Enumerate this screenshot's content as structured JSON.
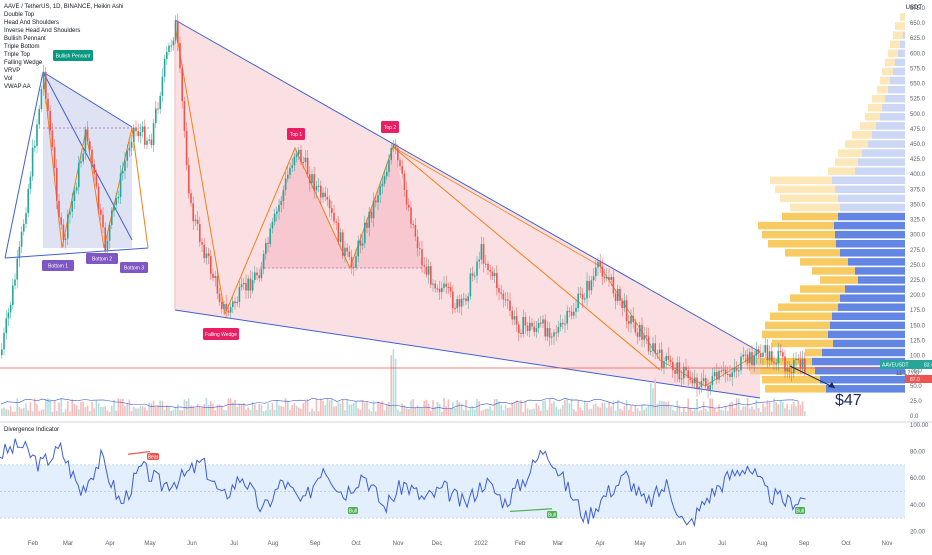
{
  "header": {
    "title": "AAVE / TetherUS, 1D, BINANCE, Heikin Ashi",
    "indicators": [
      "Double Top",
      "Head And Shoulders",
      "Inverse Head And Shoulders",
      "Bullish Pennant",
      "Triple Bottom",
      "Triple Top",
      "Falling Wedge",
      "VRVP",
      "Vol",
      "VWAP AA"
    ],
    "unit": "USDT"
  },
  "lower_pane": {
    "title": "Divergence Indicator"
  },
  "colors": {
    "up": "#26a69a",
    "down": "#ef5350",
    "wedge": "#3e5fd1",
    "pattern": "#f57f17",
    "pink_fill": "#f8c6cc",
    "profile_blue": "#5b7fe0",
    "profile_blue_light": "#c9d5f5",
    "profile_yellow": "#f7c85a",
    "profile_yellow_light": "#fde6b5",
    "rsi": "#3e5fd1",
    "bull_label": "#4caf50",
    "bear_label": "#ef5350",
    "bottom_label": "#7e57c2",
    "top_label": "#e91e63",
    "price_tag": "#26a69a",
    "price_tag2": "#ef5350"
  },
  "annotations": {
    "bullish_pennant": "Bullish Pennant",
    "bottom1": "Bottom 1",
    "bottom2": "Bottom 2",
    "bottom3": "Bottom 3",
    "top1": "Top 1",
    "top2": "Top 2",
    "falling_wedge": "Falling Wedge",
    "target": "$47",
    "price_tag": "AAVEUSDT",
    "price_value": "83.4",
    "countdown": "11:17:00",
    "price_tag2": "87.0",
    "bear": "Bear",
    "bull": "Bull"
  },
  "chart_data": [
    {
      "type": "line",
      "name": "AAVE / TetherUS price (Heikin Ashi, approximated close path)",
      "x": [
        "Feb",
        "Mar",
        "Apr",
        "May",
        "Jun",
        "Jul",
        "Aug",
        "Sep",
        "Oct",
        "Nov",
        "Dec",
        "2022",
        "Feb",
        "Mar",
        "Apr",
        "May",
        "Jun",
        "Jul",
        "Aug",
        "Sep"
      ],
      "series": [
        {
          "values": [
            430,
            560,
            380,
            650,
            250,
            200,
            420,
            380,
            310,
            330,
            200,
            220,
            160,
            150,
            240,
            120,
            60,
            85,
            95,
            80
          ]
        }
      ],
      "yticks": [
        0.0,
        25.0,
        50.0,
        75.0,
        100.0,
        125.0,
        150.0,
        175.0,
        200.0,
        225.0,
        250.0,
        275.0,
        300.0,
        325.0,
        350.0,
        375.0,
        400.0,
        425.0,
        450.0,
        475.0,
        500.0,
        525.0,
        550.0,
        575.0,
        600.0,
        625.0,
        650.0,
        675.0
      ],
      "xticks": [
        "Feb",
        "Mar",
        "Apr",
        "May",
        "Jun",
        "Jul",
        "Aug",
        "Sep",
        "Oct",
        "Nov",
        "Dec",
        "2022",
        "Feb",
        "Mar",
        "Apr",
        "May",
        "Jun",
        "Jul",
        "Aug",
        "Sep",
        "Oct",
        "Nov"
      ],
      "ylim": [
        0,
        675
      ],
      "last_price": 83.4
    },
    {
      "type": "line",
      "name": "Divergence Indicator",
      "yticks": [
        20.0,
        40.0,
        60.0,
        80.0,
        100.0
      ],
      "ylim": [
        15,
        100
      ],
      "band": [
        30,
        70
      ],
      "values": [
        78,
        85,
        70,
        82,
        50,
        75,
        40,
        68,
        55,
        60,
        72,
        45,
        62,
        35,
        58,
        40,
        70,
        48,
        64,
        38,
        56,
        44,
        52,
        40,
        58,
        42,
        60,
        84,
        55,
        30,
        48,
        62,
        40,
        55,
        22,
        45,
        60,
        70,
        48,
        42,
        46
      ]
    }
  ]
}
